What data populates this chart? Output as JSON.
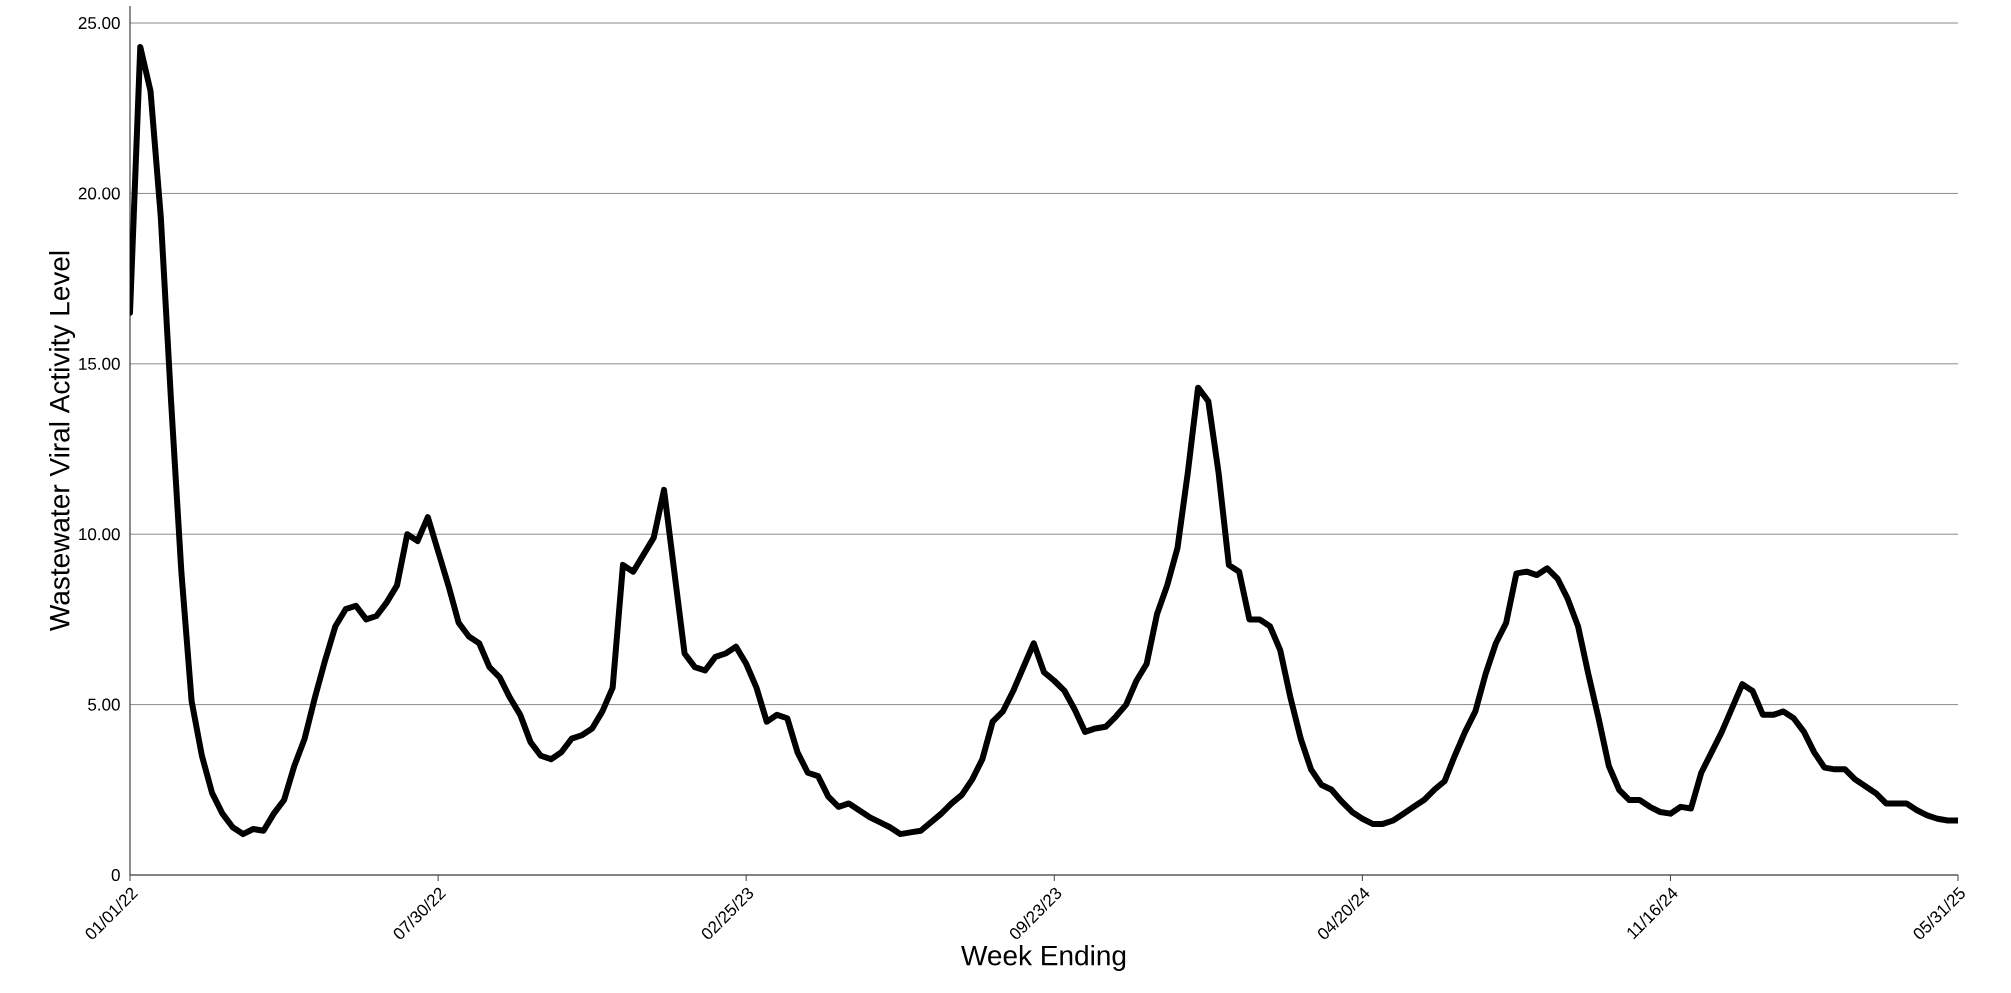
{
  "chart_data": {
    "type": "line",
    "xlabel": "Week Ending",
    "ylabel": "Wastewater Viral Activity Level",
    "categories": [
      "01/01/22",
      null,
      null,
      null,
      null,
      null,
      null,
      null,
      null,
      null,
      null,
      null,
      null,
      null,
      null,
      null,
      null,
      null,
      null,
      null,
      null,
      null,
      null,
      null,
      null,
      null,
      null,
      null,
      null,
      null,
      "07/30/22",
      null,
      null,
      null,
      null,
      null,
      null,
      null,
      null,
      null,
      null,
      null,
      null,
      null,
      null,
      null,
      null,
      null,
      null,
      null,
      null,
      null,
      null,
      null,
      null,
      null,
      null,
      null,
      null,
      null,
      "02/25/23",
      null,
      null,
      null,
      null,
      null,
      null,
      null,
      null,
      null,
      null,
      null,
      null,
      null,
      null,
      null,
      null,
      null,
      null,
      null,
      null,
      null,
      null,
      null,
      null,
      null,
      null,
      null,
      null,
      null,
      "09/23/23",
      null,
      null,
      null,
      null,
      null,
      null,
      null,
      null,
      null,
      null,
      null,
      null,
      null,
      null,
      null,
      null,
      null,
      null,
      null,
      null,
      null,
      null,
      null,
      null,
      null,
      null,
      null,
      null,
      null,
      "04/20/24",
      null,
      null,
      null,
      null,
      null,
      null,
      null,
      null,
      null,
      null,
      null,
      null,
      null,
      null,
      null,
      null,
      null,
      null,
      null,
      null,
      null,
      null,
      null,
      null,
      null,
      null,
      null,
      null,
      null,
      "11/16/24",
      null,
      null,
      null,
      null,
      null,
      null,
      null,
      null,
      null,
      null,
      null,
      null,
      null,
      null,
      null,
      null,
      null,
      null,
      null,
      null,
      null,
      null,
      null,
      null,
      null,
      null,
      null,
      "05/31/25"
    ],
    "values": [
      16.5,
      24.3,
      23.0,
      19.3,
      13.9,
      8.9,
      5.1,
      3.5,
      2.4,
      1.8,
      1.4,
      1.2,
      1.35,
      1.3,
      1.8,
      2.2,
      3.2,
      4.0,
      5.2,
      6.3,
      7.3,
      7.8,
      7.9,
      7.5,
      7.6,
      8.0,
      8.5,
      10.0,
      9.8,
      10.5,
      9.5,
      8.5,
      7.4,
      7.0,
      6.8,
      6.1,
      5.8,
      5.2,
      4.7,
      3.9,
      3.5,
      3.4,
      3.6,
      4.0,
      4.1,
      4.3,
      4.8,
      5.5,
      9.1,
      8.9,
      9.4,
      9.9,
      11.3,
      8.9,
      6.5,
      6.1,
      6.0,
      6.4,
      6.5,
      6.7,
      6.2,
      5.5,
      4.5,
      4.7,
      4.6,
      3.6,
      3.0,
      2.9,
      2.3,
      2.0,
      2.1,
      1.9,
      1.7,
      1.55,
      1.4,
      1.2,
      1.25,
      1.3,
      1.55,
      1.8,
      2.1,
      2.35,
      2.8,
      3.4,
      4.5,
      4.8,
      5.4,
      6.1,
      6.8,
      5.95,
      5.7,
      5.4,
      4.85,
      4.2,
      4.3,
      4.35,
      4.65,
      5.0,
      5.7,
      6.2,
      7.65,
      8.5,
      9.6,
      11.8,
      14.3,
      13.9,
      11.8,
      9.1,
      8.9,
      7.5,
      7.5,
      7.3,
      6.6,
      5.2,
      4.0,
      3.1,
      2.65,
      2.5,
      2.15,
      1.85,
      1.65,
      1.5,
      1.5,
      1.6,
      1.8,
      2.0,
      2.2,
      2.5,
      2.75,
      3.5,
      4.2,
      4.8,
      5.9,
      6.8,
      7.4,
      8.85,
      8.9,
      8.8,
      9.0,
      8.7,
      8.1,
      7.3,
      5.9,
      4.6,
      3.2,
      2.5,
      2.2,
      2.2,
      2.0,
      1.85,
      1.8,
      2.0,
      1.95,
      3.0,
      3.6,
      4.2,
      4.9,
      5.6,
      5.4,
      4.7,
      4.7,
      4.8,
      4.6,
      4.2,
      3.6,
      3.15,
      3.1,
      3.1,
      2.8,
      2.6,
      2.4,
      2.1,
      2.1,
      2.1,
      1.9,
      1.75,
      1.65,
      1.6,
      1.6
    ],
    "color": "#000000",
    "ylim": [
      0,
      25.5
    ],
    "yticks": [
      0,
      {
        "value": 5,
        "label": "5.00"
      },
      {
        "value": 10,
        "label": "10.00"
      },
      {
        "value": 15,
        "label": "15.00"
      },
      {
        "value": 20,
        "label": "20.00"
      },
      {
        "value": 25,
        "label": "25.00"
      }
    ],
    "grid": "y",
    "marker": "none",
    "line_style": "solid"
  }
}
